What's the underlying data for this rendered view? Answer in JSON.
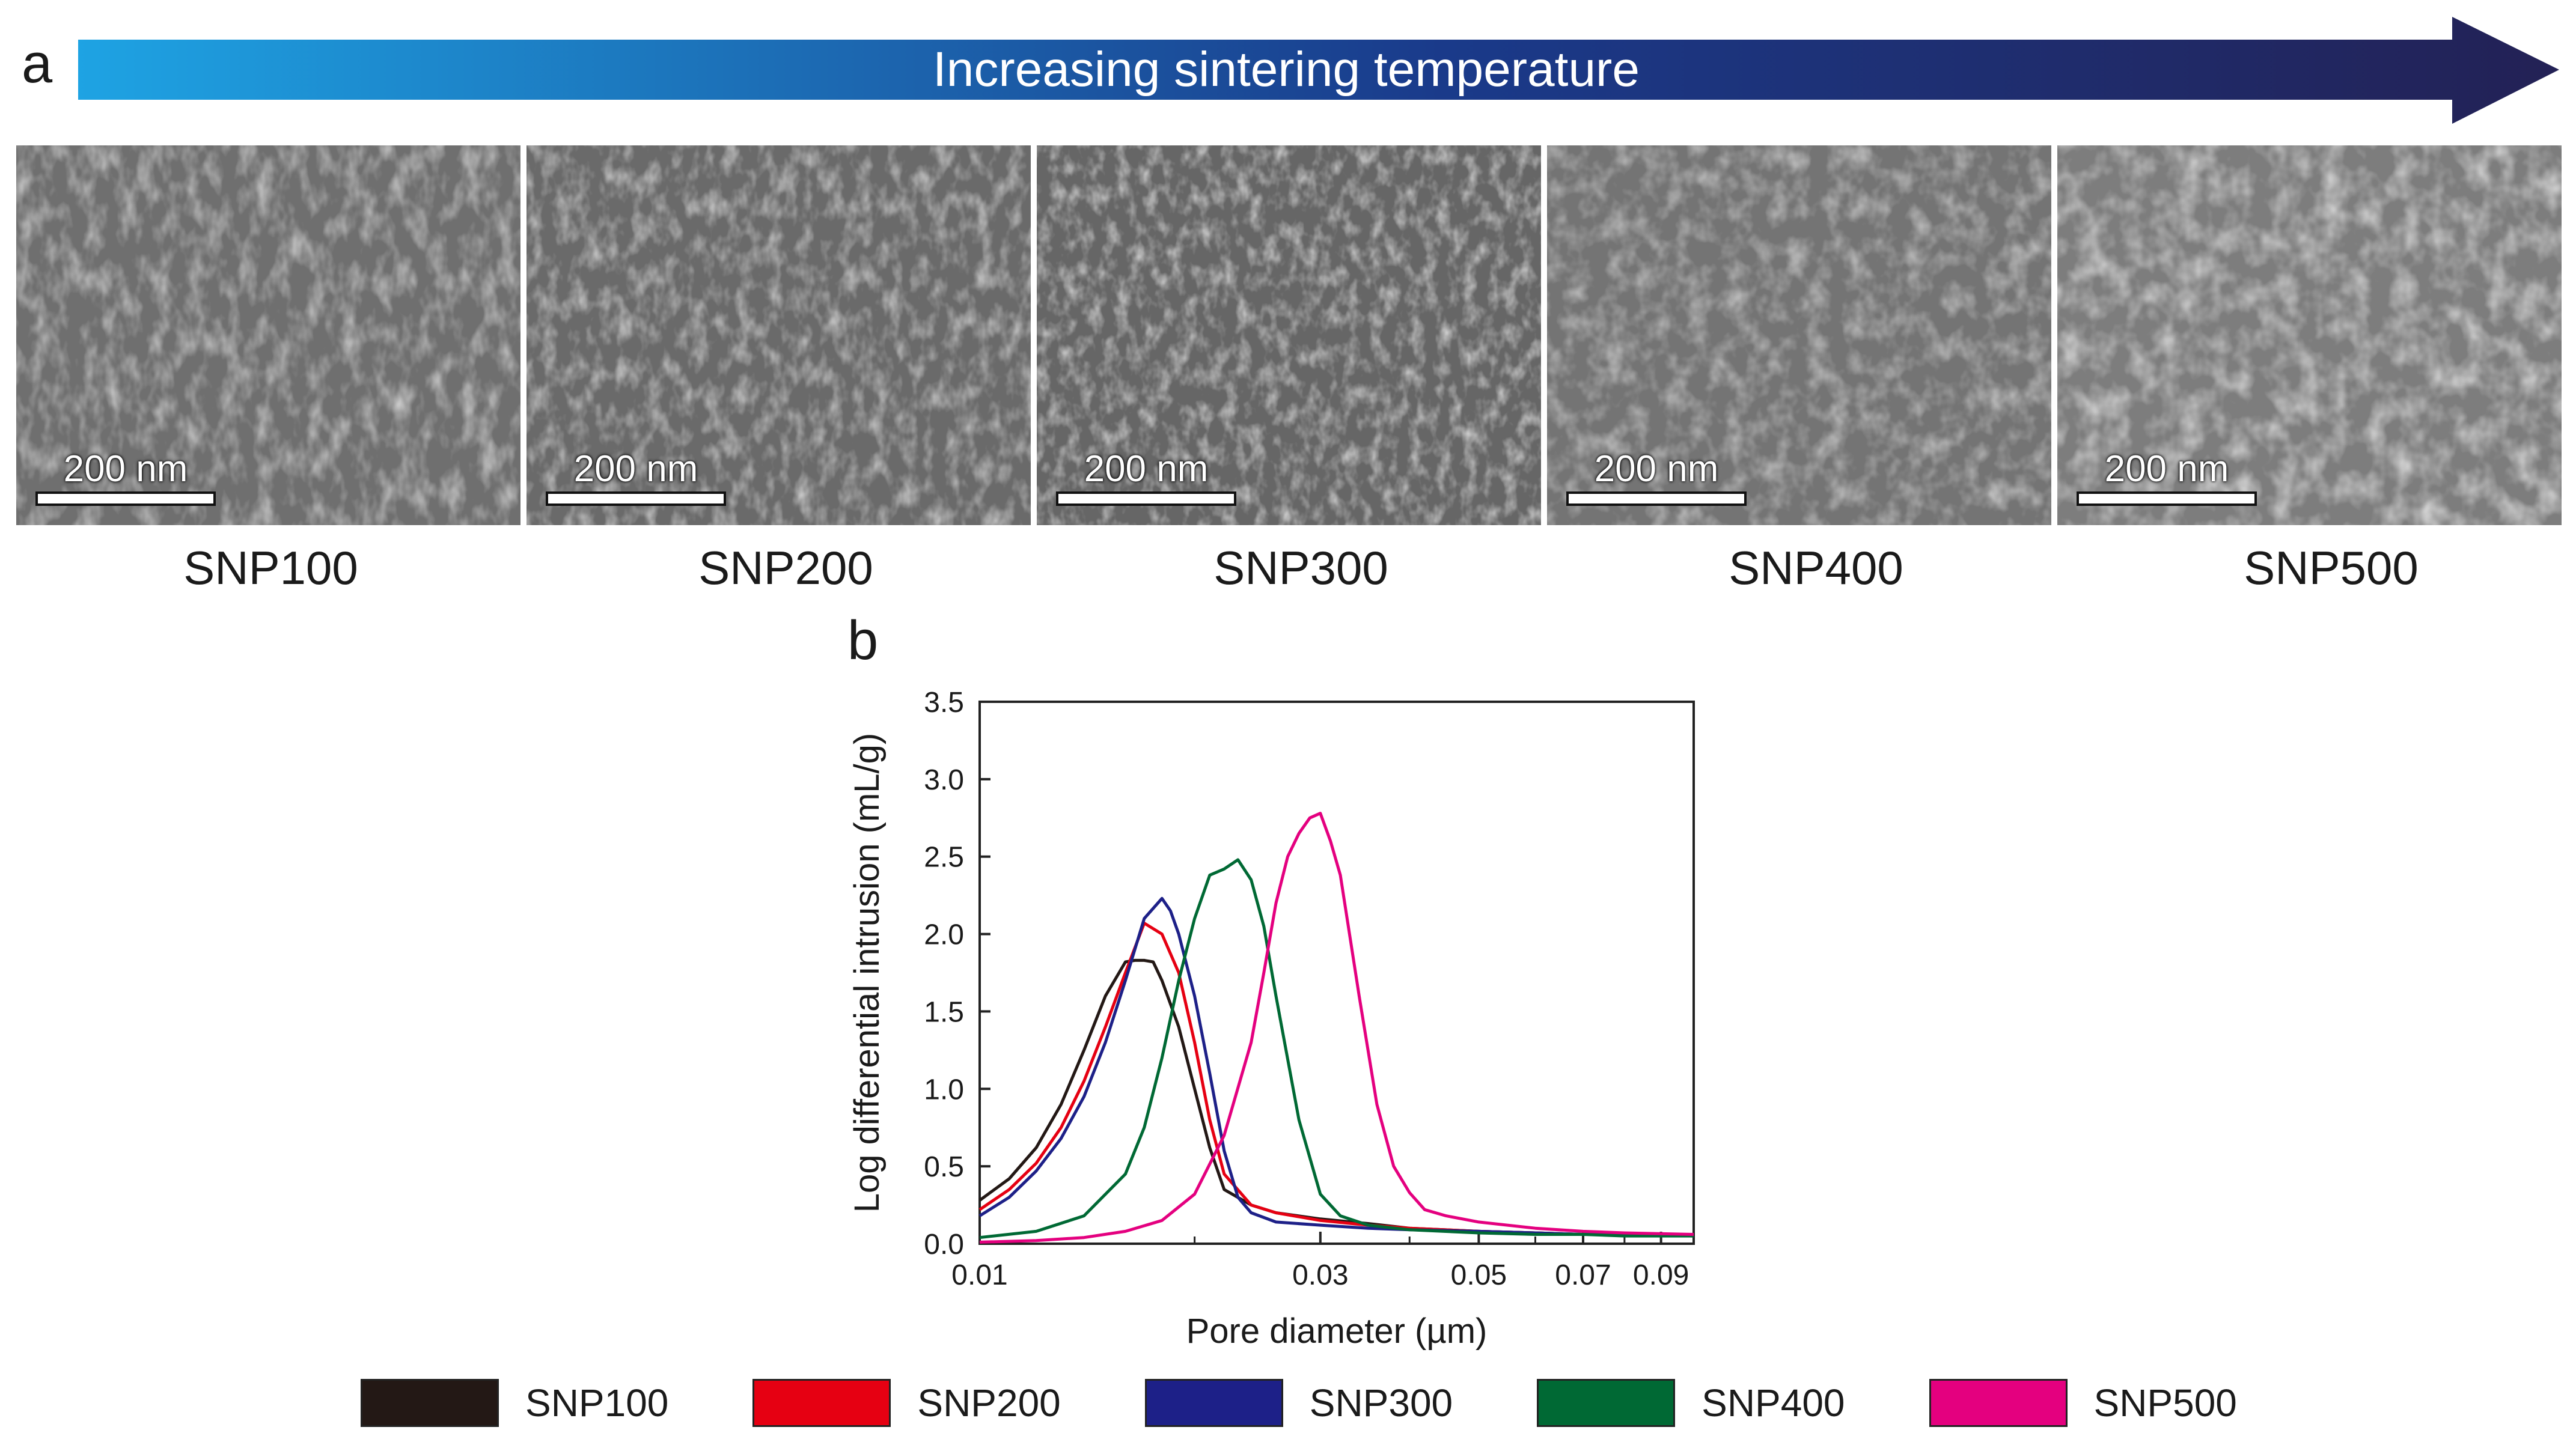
{
  "panel_a": {
    "label": "a",
    "arrow_title": "Increasing sintering temperature",
    "arrow_gradient": [
      "#1ea3e3",
      "#1a3a8a",
      "#232155"
    ],
    "images": [
      {
        "caption": "SNP100",
        "scale": "200 nm"
      },
      {
        "caption": "SNP200",
        "scale": "200 nm"
      },
      {
        "caption": "SNP300",
        "scale": "200 nm"
      },
      {
        "caption": "SNP400",
        "scale": "200 nm"
      },
      {
        "caption": "SNP500",
        "scale": "200 nm"
      }
    ]
  },
  "chart_data": {
    "panel_label": "b",
    "type": "line",
    "xscale": "log",
    "xlabel": "Pore diameter (µm)",
    "ylabel": "Log differential intrusion (mL/g)",
    "xlim": [
      0.01,
      0.1
    ],
    "ylim": [
      0,
      3.5
    ],
    "xticks": [
      0.01,
      0.03,
      0.05,
      0.07,
      0.09
    ],
    "xtick_labels": [
      "0.01",
      "0.03",
      "0.05",
      "0.07",
      "0.09"
    ],
    "yticks": [
      0,
      0.5,
      1,
      1.5,
      2,
      2.5,
      3,
      3.5
    ],
    "ytick_labels": [
      "0.0",
      "0.5",
      "1.0",
      "1.5",
      "2.0",
      "2.5",
      "3.0",
      "3.5"
    ],
    "series": [
      {
        "name": "SNP100",
        "color": "#231815",
        "x": [
          0.01,
          0.011,
          0.012,
          0.013,
          0.014,
          0.015,
          0.016,
          0.0165,
          0.017,
          0.0175,
          0.018,
          0.019,
          0.02,
          0.021,
          0.022,
          0.024,
          0.026,
          0.03,
          0.035,
          0.04,
          0.05,
          0.06,
          0.07,
          0.08,
          0.1
        ],
        "y": [
          0.28,
          0.42,
          0.62,
          0.9,
          1.25,
          1.6,
          1.82,
          1.83,
          1.83,
          1.82,
          1.7,
          1.4,
          1.0,
          0.62,
          0.35,
          0.25,
          0.2,
          0.16,
          0.13,
          0.1,
          0.08,
          0.07,
          0.06,
          0.06,
          0.05
        ]
      },
      {
        "name": "SNP200",
        "color": "#e60012",
        "x": [
          0.01,
          0.011,
          0.012,
          0.013,
          0.014,
          0.015,
          0.016,
          0.017,
          0.018,
          0.019,
          0.02,
          0.021,
          0.022,
          0.024,
          0.026,
          0.03,
          0.035,
          0.04,
          0.05,
          0.06,
          0.07,
          0.08,
          0.1
        ],
        "y": [
          0.22,
          0.35,
          0.52,
          0.75,
          1.05,
          1.4,
          1.75,
          2.07,
          2.0,
          1.75,
          1.3,
          0.8,
          0.45,
          0.25,
          0.2,
          0.15,
          0.12,
          0.1,
          0.08,
          0.07,
          0.06,
          0.06,
          0.05
        ]
      },
      {
        "name": "SNP300",
        "color": "#1d2088",
        "x": [
          0.01,
          0.011,
          0.012,
          0.013,
          0.014,
          0.015,
          0.016,
          0.017,
          0.018,
          0.0185,
          0.019,
          0.02,
          0.021,
          0.022,
          0.023,
          0.024,
          0.026,
          0.03,
          0.035,
          0.04,
          0.05,
          0.06,
          0.07,
          0.08,
          0.1
        ],
        "y": [
          0.18,
          0.3,
          0.47,
          0.68,
          0.95,
          1.3,
          1.7,
          2.1,
          2.23,
          2.15,
          2.0,
          1.6,
          1.1,
          0.6,
          0.3,
          0.2,
          0.14,
          0.12,
          0.1,
          0.09,
          0.08,
          0.07,
          0.06,
          0.06,
          0.05
        ]
      },
      {
        "name": "SNP400",
        "color": "#006934",
        "x": [
          0.01,
          0.012,
          0.014,
          0.016,
          0.017,
          0.018,
          0.019,
          0.02,
          0.021,
          0.022,
          0.023,
          0.024,
          0.025,
          0.026,
          0.028,
          0.03,
          0.032,
          0.035,
          0.04,
          0.05,
          0.06,
          0.07,
          0.08,
          0.1
        ],
        "y": [
          0.04,
          0.08,
          0.18,
          0.45,
          0.75,
          1.2,
          1.7,
          2.1,
          2.38,
          2.42,
          2.48,
          2.35,
          2.05,
          1.6,
          0.8,
          0.32,
          0.18,
          0.12,
          0.09,
          0.07,
          0.06,
          0.06,
          0.05,
          0.05
        ]
      },
      {
        "name": "SNP500",
        "color": "#e4007f",
        "x": [
          0.01,
          0.012,
          0.014,
          0.016,
          0.018,
          0.02,
          0.022,
          0.024,
          0.025,
          0.026,
          0.027,
          0.028,
          0.029,
          0.03,
          0.031,
          0.032,
          0.034,
          0.036,
          0.038,
          0.04,
          0.042,
          0.045,
          0.05,
          0.06,
          0.07,
          0.08,
          0.1
        ],
        "y": [
          0.01,
          0.02,
          0.04,
          0.08,
          0.15,
          0.32,
          0.7,
          1.3,
          1.75,
          2.2,
          2.5,
          2.65,
          2.75,
          2.78,
          2.6,
          2.38,
          1.6,
          0.9,
          0.5,
          0.33,
          0.22,
          0.18,
          0.14,
          0.1,
          0.08,
          0.07,
          0.06
        ]
      }
    ]
  }
}
